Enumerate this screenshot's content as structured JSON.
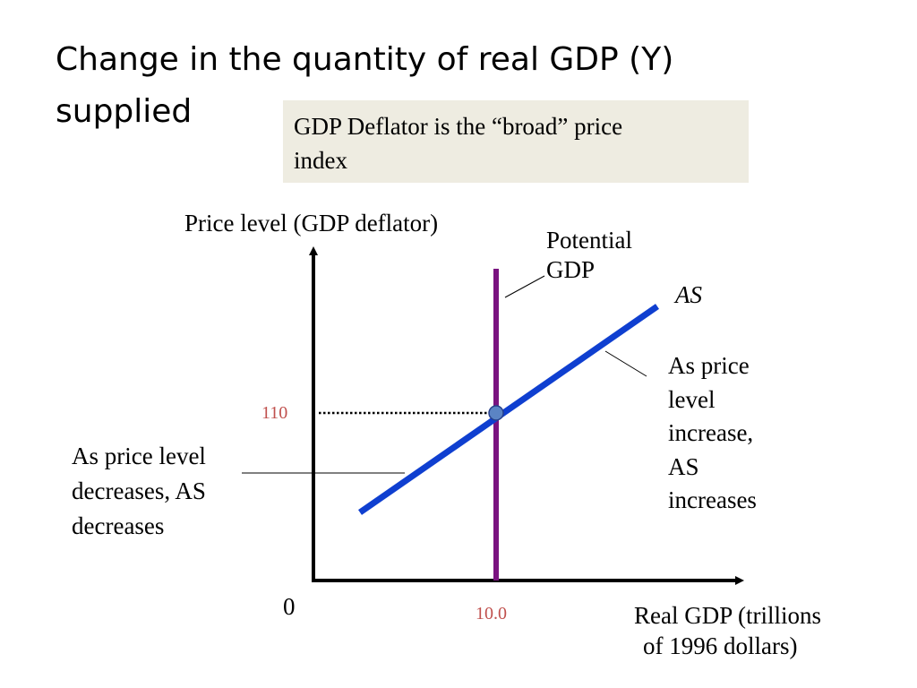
{
  "slide": {
    "title_lines": [
      "Change in the quantity of real GDP (Y)",
      "supplied"
    ],
    "note_lines": [
      "GDP Deflator is the “broad” price",
      "index"
    ]
  },
  "diagram": {
    "y_axis_label": "Price level (GDP deflator)",
    "x_axis_label_lines": [
      "Real GDP (trillions",
      "of 1996 dollars)"
    ],
    "origin_label": "0",
    "price_tick": "110",
    "gdp_tick": "10.0",
    "potential_gdp_lines": [
      "Potential",
      "GDP"
    ],
    "as_label": "AS",
    "increase_note_lines": [
      "As price",
      "level",
      "increase,",
      "AS",
      "increases"
    ],
    "decrease_note_lines": [
      "As price level",
      "decreases, AS",
      "decreases"
    ],
    "colors": {
      "as_curve": "#0f3fd0",
      "potential_gdp": "#7a1380",
      "tick_labels": "#c0504d",
      "equilibrium_point": "#5b84c4",
      "note_box": "#eeece1"
    }
  }
}
